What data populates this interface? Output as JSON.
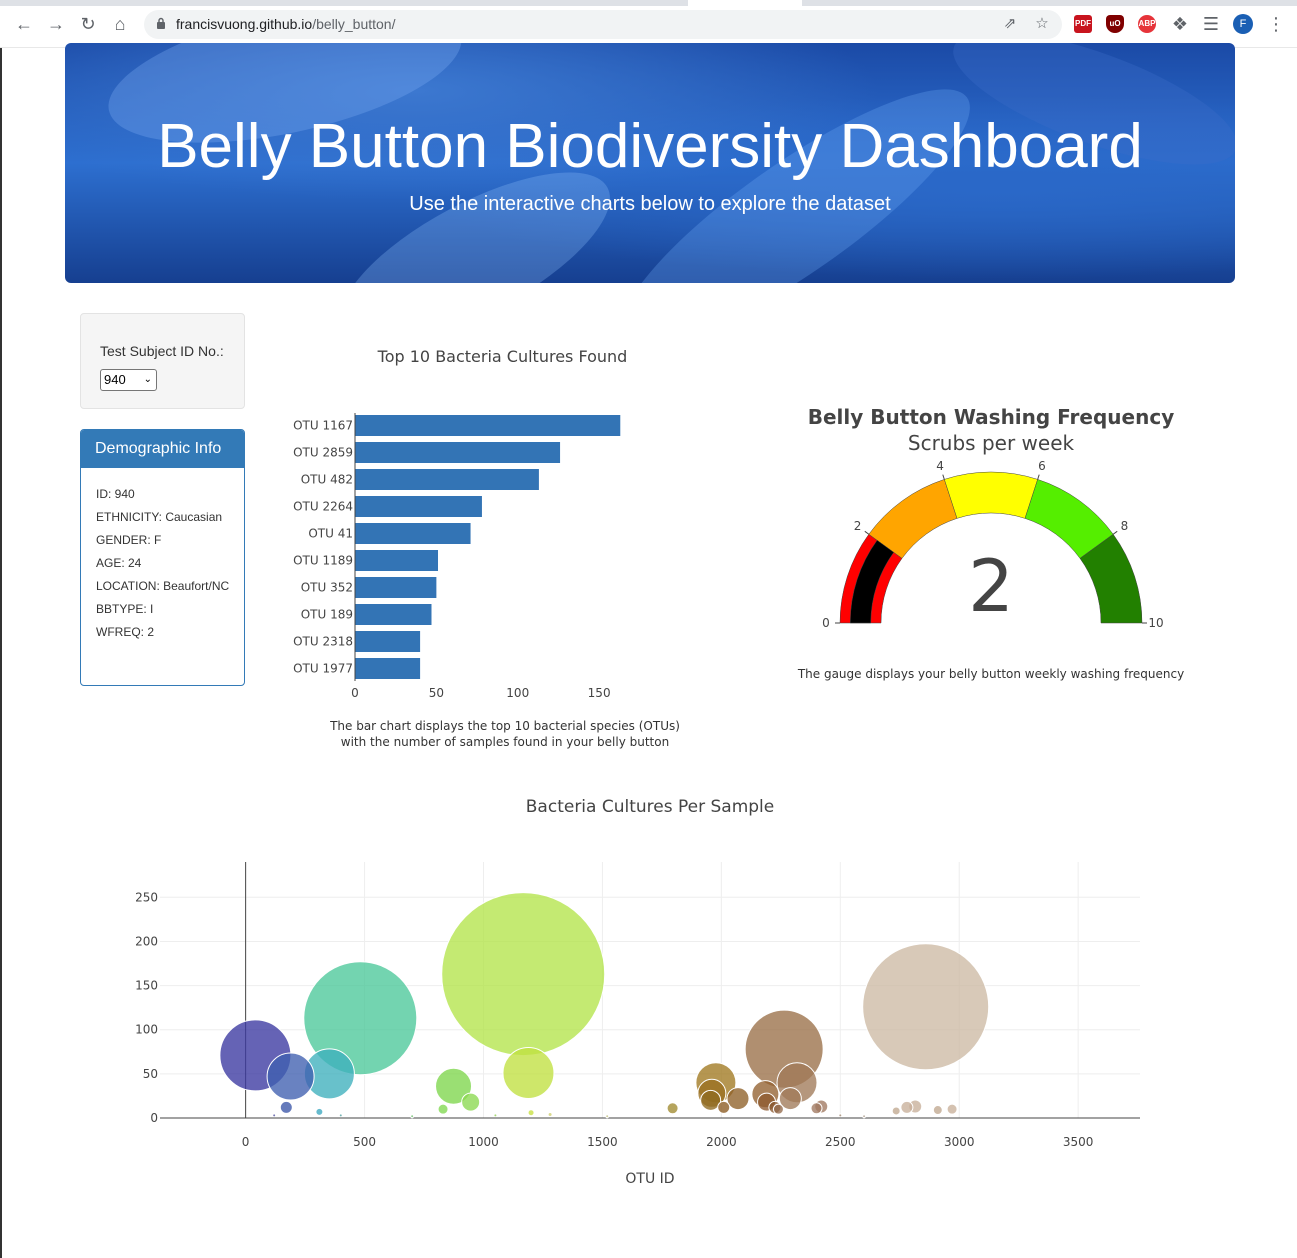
{
  "browser": {
    "url_host": "francisvuong.github.io",
    "url_path": "/belly_button/",
    "avatar_initial": "F"
  },
  "header": {
    "title": "Belly Button Biodiversity Dashboard",
    "subtitle": "Use the interactive charts below to explore the dataset"
  },
  "selector": {
    "label": "Test Subject ID No.:",
    "selected": "940"
  },
  "demographics": {
    "heading": "Demographic Info",
    "rows": [
      "ID: 940",
      "ETHNICITY: Caucasian",
      "GENDER: F",
      "AGE: 24",
      "LOCATION: Beaufort/NC",
      "BBTYPE: I",
      "WFREQ: 2"
    ]
  },
  "bar_chart": {
    "title": "Top 10 Bacteria Cultures Found",
    "caption_line1": "The bar chart displays the top 10 bacterial species (OTUs)",
    "caption_line2": "with the number of samples found in your belly button"
  },
  "gauge_chart": {
    "title": "Belly Button Washing Frequency",
    "subtitle": "Scrubs per week",
    "caption": "The gauge displays your belly button weekly washing frequency"
  },
  "bubble_chart": {
    "title": "Bacteria Cultures Per Sample",
    "xlabel": "OTU ID"
  },
  "chart_data": [
    {
      "type": "bar",
      "orientation": "horizontal",
      "title": "Top 10 Bacteria Cultures Found",
      "categories": [
        "OTU 1167",
        "OTU 2859",
        "OTU 482",
        "OTU 2264",
        "OTU 41",
        "OTU 1189",
        "OTU 352",
        "OTU 189",
        "OTU 2318",
        "OTU 1977"
      ],
      "values": [
        163,
        126,
        113,
        78,
        71,
        51,
        50,
        47,
        40,
        40
      ],
      "xlim": [
        0,
        180
      ],
      "xticks": [
        0,
        50,
        100,
        150
      ],
      "color": "#3374b5"
    },
    {
      "type": "gauge",
      "value": 2,
      "range": [
        0,
        10
      ],
      "ticks": [
        0,
        2,
        4,
        6,
        8,
        10
      ],
      "steps": [
        {
          "range": [
            0,
            2
          ],
          "color": "#ff0000"
        },
        {
          "range": [
            2,
            4
          ],
          "color": "#ffa500"
        },
        {
          "range": [
            4,
            6
          ],
          "color": "#ffff00"
        },
        {
          "range": [
            6,
            8
          ],
          "color": "#55ee00"
        },
        {
          "range": [
            8,
            10
          ],
          "color": "#228000"
        }
      ],
      "bar_color": "#000000"
    },
    {
      "type": "scatter",
      "title": "Bacteria Cultures Per Sample",
      "xlabel": "OTU ID",
      "xlim": [
        -360,
        3760
      ],
      "ylim": [
        0,
        290
      ],
      "xticks": [
        0,
        500,
        1000,
        1500,
        2000,
        2500,
        3000,
        3500
      ],
      "yticks": [
        0,
        50,
        100,
        150,
        200,
        250
      ],
      "grid": true,
      "points": [
        {
          "x": 41,
          "y": 71,
          "color": "#3a37a0"
        },
        {
          "x": 189,
          "y": 47,
          "color": "#3f5fb0"
        },
        {
          "x": 171,
          "y": 12,
          "color": "#3a55a8"
        },
        {
          "x": 352,
          "y": 50,
          "color": "#3db0bc"
        },
        {
          "x": 310,
          "y": 7,
          "color": "#3ba8c0"
        },
        {
          "x": 482,
          "y": 113,
          "color": "#4cc89a"
        },
        {
          "x": 874,
          "y": 36,
          "color": "#7dd64c"
        },
        {
          "x": 830,
          "y": 10,
          "color": "#80d850"
        },
        {
          "x": 946,
          "y": 18,
          "color": "#8ad850"
        },
        {
          "x": 1167,
          "y": 163,
          "color": "#b4e44a"
        },
        {
          "x": 1189,
          "y": 51,
          "color": "#c0e040"
        },
        {
          "x": 1200,
          "y": 6,
          "color": "#c8e040"
        },
        {
          "x": 1795,
          "y": 11,
          "color": "#a08a30"
        },
        {
          "x": 1977,
          "y": 40,
          "color": "#a07820"
        },
        {
          "x": 1960,
          "y": 28,
          "color": "#9a7020"
        },
        {
          "x": 1955,
          "y": 20,
          "color": "#8e6a20"
        },
        {
          "x": 2010,
          "y": 12,
          "color": "#8a5a20"
        },
        {
          "x": 2070,
          "y": 22,
          "color": "#8e6028"
        },
        {
          "x": 2185,
          "y": 27,
          "color": "#926030"
        },
        {
          "x": 2190,
          "y": 18,
          "color": "#8e5a30"
        },
        {
          "x": 2225,
          "y": 12,
          "color": "#8a5830"
        },
        {
          "x": 2264,
          "y": 78,
          "color": "#9a7048"
        },
        {
          "x": 2318,
          "y": 40,
          "color": "#a07a58"
        },
        {
          "x": 2290,
          "y": 22,
          "color": "#a07a58"
        },
        {
          "x": 2240,
          "y": 10,
          "color": "#946a4c"
        },
        {
          "x": 2400,
          "y": 11,
          "color": "#a07860"
        },
        {
          "x": 2420,
          "y": 13,
          "color": "#a07860"
        },
        {
          "x": 2859,
          "y": 126,
          "color": "#cdbaa4"
        },
        {
          "x": 2780,
          "y": 12,
          "color": "#c8b09a"
        },
        {
          "x": 2815,
          "y": 13,
          "color": "#c8b09a"
        },
        {
          "x": 2735,
          "y": 8,
          "color": "#c0a890"
        },
        {
          "x": 2910,
          "y": 9,
          "color": "#c0a890"
        },
        {
          "x": 2970,
          "y": 10,
          "color": "#c8b09a"
        },
        {
          "x": 1280,
          "y": 4,
          "color": "#d0d070"
        },
        {
          "x": 1520,
          "y": 2,
          "color": "#c0c080"
        },
        {
          "x": 120,
          "y": 3,
          "color": "#5050a0"
        },
        {
          "x": 400,
          "y": 3,
          "color": "#50a0a0"
        },
        {
          "x": 700,
          "y": 2,
          "color": "#70c070"
        },
        {
          "x": 1050,
          "y": 3,
          "color": "#90d050"
        },
        {
          "x": 2500,
          "y": 3,
          "color": "#a08870"
        },
        {
          "x": 2600,
          "y": 2,
          "color": "#b0a090"
        }
      ]
    }
  ]
}
